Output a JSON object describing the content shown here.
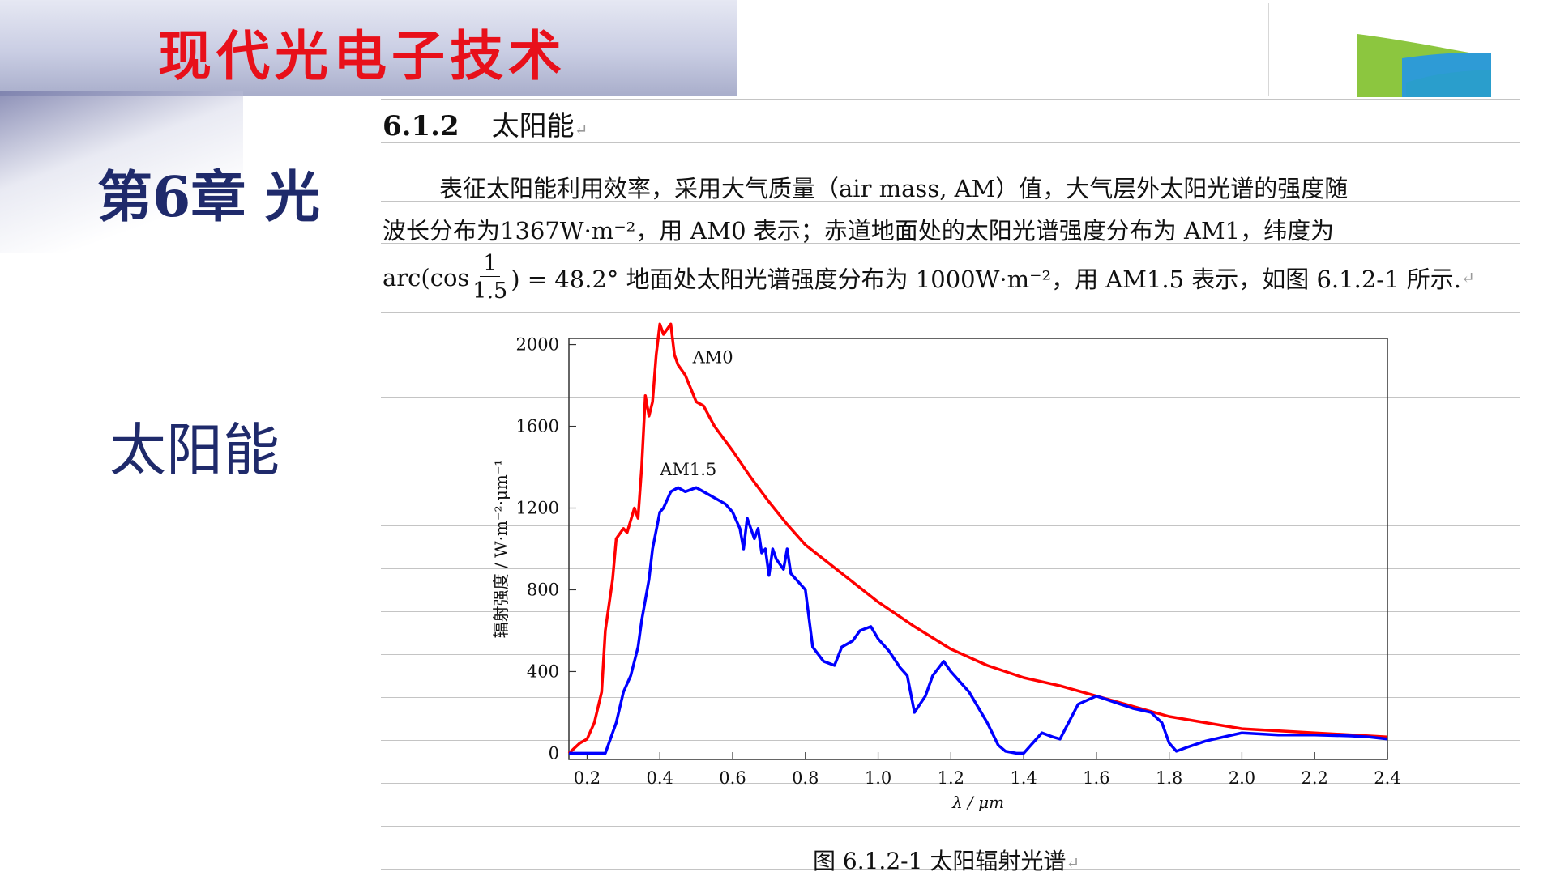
{
  "header": {
    "course_title": "现代光电子技术",
    "chapter": "第6章  光",
    "topic": "太阳能"
  },
  "section": {
    "number": "6.1.2",
    "title": "太阳能"
  },
  "text": {
    "line1": "表征太阳能利用效率，采用大气质量（air mass, AM）值，大气层外太阳光谱的强度随",
    "line2": "波长分布为1367W·m⁻²，用 AM0 表示；赤道地面处的太阳光谱强度分布为 AM1，纬度为",
    "line3_prefix": "arc(cos",
    "frac_num": "1",
    "frac_den": "1.5",
    "line3_suffix": ") = 48.2° 地面处太阳光谱强度分布为 1000W·m⁻²，用 AM1.5 表示，如图 6.1.2-1 所示.",
    "return_mark": "↵"
  },
  "chart_data": {
    "type": "line",
    "xlabel": "λ / μm",
    "ylabel": "辐射强度  /  W·m⁻²·μm⁻¹",
    "xlim": [
      0.15,
      2.4
    ],
    "ylim": [
      -30,
      2030
    ],
    "xticks": [
      0.2,
      0.4,
      0.6,
      0.8,
      1.0,
      1.2,
      1.4,
      1.6,
      1.8,
      2.0,
      2.2,
      2.4
    ],
    "yticks": [
      0,
      400,
      800,
      1200,
      1600,
      2000
    ],
    "grid": false,
    "series": [
      {
        "name": "AM0",
        "color": "#ff0000",
        "x": [
          0.15,
          0.18,
          0.2,
          0.22,
          0.24,
          0.25,
          0.27,
          0.28,
          0.3,
          0.31,
          0.33,
          0.34,
          0.35,
          0.36,
          0.37,
          0.38,
          0.39,
          0.4,
          0.41,
          0.43,
          0.44,
          0.45,
          0.47,
          0.5,
          0.52,
          0.55,
          0.6,
          0.65,
          0.7,
          0.75,
          0.8,
          0.9,
          1.0,
          1.1,
          1.2,
          1.3,
          1.4,
          1.5,
          1.6,
          1.7,
          1.8,
          1.9,
          2.0,
          2.2,
          2.4
        ],
        "y": [
          0,
          50,
          70,
          150,
          300,
          600,
          850,
          1050,
          1100,
          1080,
          1200,
          1150,
          1400,
          1750,
          1650,
          1720,
          1950,
          2100,
          2050,
          2100,
          1950,
          1900,
          1850,
          1720,
          1700,
          1600,
          1480,
          1350,
          1230,
          1120,
          1020,
          880,
          740,
          620,
          510,
          430,
          370,
          330,
          280,
          230,
          180,
          150,
          120,
          100,
          80
        ]
      },
      {
        "name": "AM1.5",
        "color": "#0000ff",
        "x": [
          0.15,
          0.2,
          0.25,
          0.28,
          0.3,
          0.32,
          0.34,
          0.35,
          0.37,
          0.38,
          0.4,
          0.41,
          0.43,
          0.45,
          0.47,
          0.5,
          0.52,
          0.55,
          0.58,
          0.6,
          0.62,
          0.63,
          0.64,
          0.66,
          0.67,
          0.68,
          0.69,
          0.7,
          0.71,
          0.72,
          0.74,
          0.75,
          0.76,
          0.8,
          0.82,
          0.85,
          0.88,
          0.9,
          0.93,
          0.95,
          0.98,
          1.0,
          1.03,
          1.06,
          1.08,
          1.1,
          1.13,
          1.15,
          1.18,
          1.2,
          1.25,
          1.3,
          1.33,
          1.35,
          1.38,
          1.4,
          1.43,
          1.45,
          1.48,
          1.5,
          1.55,
          1.6,
          1.65,
          1.7,
          1.75,
          1.78,
          1.8,
          1.82,
          1.85,
          1.9,
          1.95,
          2.0,
          2.1,
          2.2,
          2.3,
          2.35,
          2.4
        ],
        "y": [
          0,
          0,
          0,
          150,
          300,
          380,
          520,
          650,
          850,
          1000,
          1180,
          1200,
          1280,
          1300,
          1280,
          1300,
          1280,
          1250,
          1220,
          1180,
          1100,
          1000,
          1150,
          1050,
          1100,
          980,
          1000,
          870,
          1000,
          950,
          900,
          1000,
          880,
          800,
          520,
          450,
          430,
          520,
          550,
          600,
          620,
          560,
          500,
          420,
          380,
          200,
          280,
          380,
          450,
          400,
          300,
          150,
          40,
          10,
          0,
          0,
          60,
          100,
          80,
          70,
          240,
          280,
          250,
          220,
          200,
          150,
          50,
          10,
          30,
          60,
          80,
          100,
          90,
          90,
          85,
          80,
          70
        ]
      }
    ]
  },
  "figure": {
    "caption": "图 6.1.2-1    太阳辐射光谱",
    "am0_label": "AM0",
    "am15_label": "AM1.5"
  }
}
